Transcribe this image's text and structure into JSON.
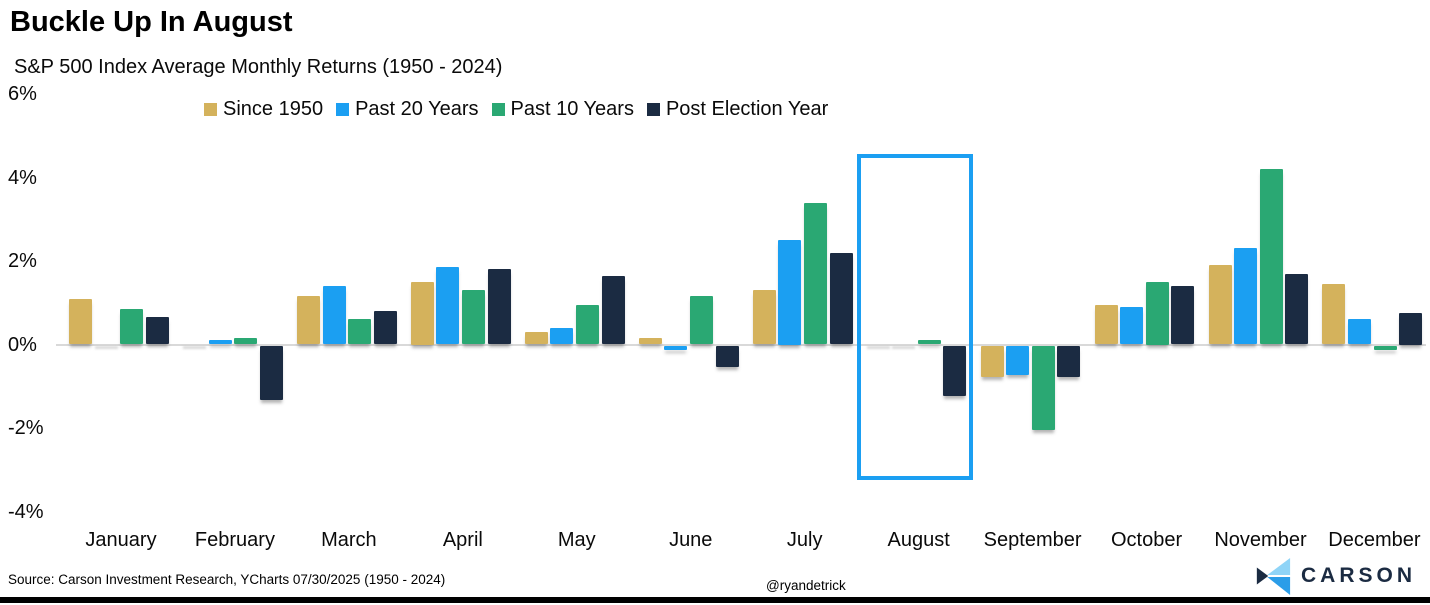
{
  "header": {
    "title": "Buckle Up In August",
    "subtitle": "S&P 500 Index Average Monthly Returns (1950 - 2024)"
  },
  "chart_data": {
    "type": "bar",
    "title": "Buckle Up In August",
    "subtitle": "S&P 500 Index Average Monthly Returns (1950 - 2024)",
    "categories": [
      "January",
      "February",
      "March",
      "April",
      "May",
      "June",
      "July",
      "August",
      "September",
      "October",
      "November",
      "December"
    ],
    "series": [
      {
        "name": "Since 1950",
        "color": "#d4b25c",
        "values": [
          1.1,
          0.0,
          1.15,
          1.5,
          0.3,
          0.15,
          1.3,
          0.0,
          -0.75,
          0.95,
          1.9,
          1.45
        ]
      },
      {
        "name": "Past 20 Years",
        "color": "#1b9ff2",
        "values": [
          0.0,
          0.1,
          1.4,
          1.85,
          0.4,
          -0.1,
          2.5,
          0.0,
          -0.7,
          0.9,
          2.3,
          0.6
        ]
      },
      {
        "name": "Past 10 Years",
        "color": "#2aa873",
        "values": [
          0.85,
          0.15,
          0.6,
          1.3,
          0.95,
          1.15,
          3.4,
          0.1,
          -2.0,
          1.5,
          4.2,
          -0.1
        ]
      },
      {
        "name": "Post Election Year",
        "color": "#1b2b42",
        "values": [
          0.65,
          -1.3,
          0.8,
          1.8,
          1.65,
          -0.5,
          2.2,
          -1.2,
          -0.75,
          1.4,
          1.7,
          0.75
        ]
      }
    ],
    "ylabel": "",
    "xlabel": "",
    "ylim": [
      -4,
      6
    ],
    "yticks": [
      {
        "label": "6%",
        "value": 6
      },
      {
        "label": "4%",
        "value": 4
      },
      {
        "label": "2%",
        "value": 2
      },
      {
        "label": "0%",
        "value": 0
      },
      {
        "label": "-2%",
        "value": -2
      },
      {
        "label": "-4%",
        "value": -4
      }
    ],
    "grid": "zero-line-only",
    "legend_position": "top",
    "highlight": {
      "month": "August",
      "color": "#1b9ff2"
    }
  },
  "footer": {
    "source": "Source: Carson Investment Research, YCharts 07/30/2025 (1950 - 2024)",
    "handle": "@ryandetrick",
    "brand": "CARSON"
  },
  "colors": {
    "accent_blue": "#1b9ff2",
    "navy": "#1b2b42",
    "zero_line": "#d9d9d9"
  }
}
